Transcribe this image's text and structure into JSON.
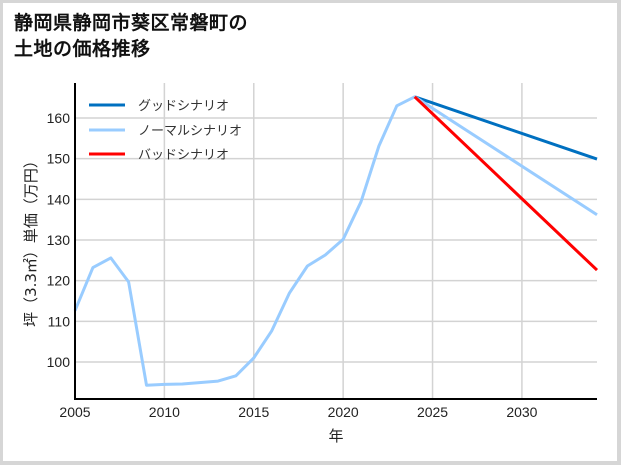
{
  "title": {
    "line1": "静岡県静岡市葵区常磐町の",
    "line2": "土地の価格推移"
  },
  "axes": {
    "xlabel": "年",
    "ylabel": "坪（3.3㎡）単価（万円）",
    "xticks": [
      "2005",
      "2010",
      "2015",
      "2020",
      "2025",
      "2030"
    ],
    "yticks": [
      "100",
      "110",
      "120",
      "130",
      "140",
      "150",
      "160"
    ]
  },
  "legend": {
    "good": "グッドシナリオ",
    "normal": "ノーマルシナリオ",
    "bad": "バッドシナリオ"
  },
  "colors": {
    "good": "#0070c0",
    "normal": "#99ccff",
    "bad": "#ff0000",
    "grid": "#d3d3d3"
  },
  "chart_data": {
    "type": "line",
    "title": "静岡県静岡市葵区常磐町の土地の価格推移",
    "xlabel": "年",
    "ylabel": "坪（3.3㎡）単価（万円）",
    "xlim": [
      2005,
      2034.2
    ],
    "ylim": [
      90.9,
      168.6
    ],
    "grid": true,
    "legend_position": "upper left",
    "series": [
      {
        "name": "ノーマルシナリオ",
        "color": "#99ccff",
        "x": [
          2005,
          2006,
          2007,
          2008,
          2009,
          2010,
          2011,
          2013,
          2014,
          2015,
          2016,
          2017,
          2018,
          2019,
          2020,
          2021,
          2022,
          2023,
          2024,
          2034.2
        ],
        "values": [
          112.6,
          123.2,
          125.6,
          119.7,
          94.3,
          94.5,
          94.6,
          95.3,
          96.6,
          101.0,
          107.6,
          117.0,
          123.6,
          126.3,
          130.2,
          139.4,
          153.1,
          163.0,
          165.2,
          136.2
        ]
      },
      {
        "name": "グッドシナリオ",
        "color": "#0070c0",
        "x": [
          2024,
          2034.2
        ],
        "values": [
          165.2,
          149.9
        ]
      },
      {
        "name": "バッドシナリオ",
        "color": "#ff0000",
        "x": [
          2024,
          2034.2
        ],
        "values": [
          165.2,
          122.6
        ]
      }
    ]
  }
}
